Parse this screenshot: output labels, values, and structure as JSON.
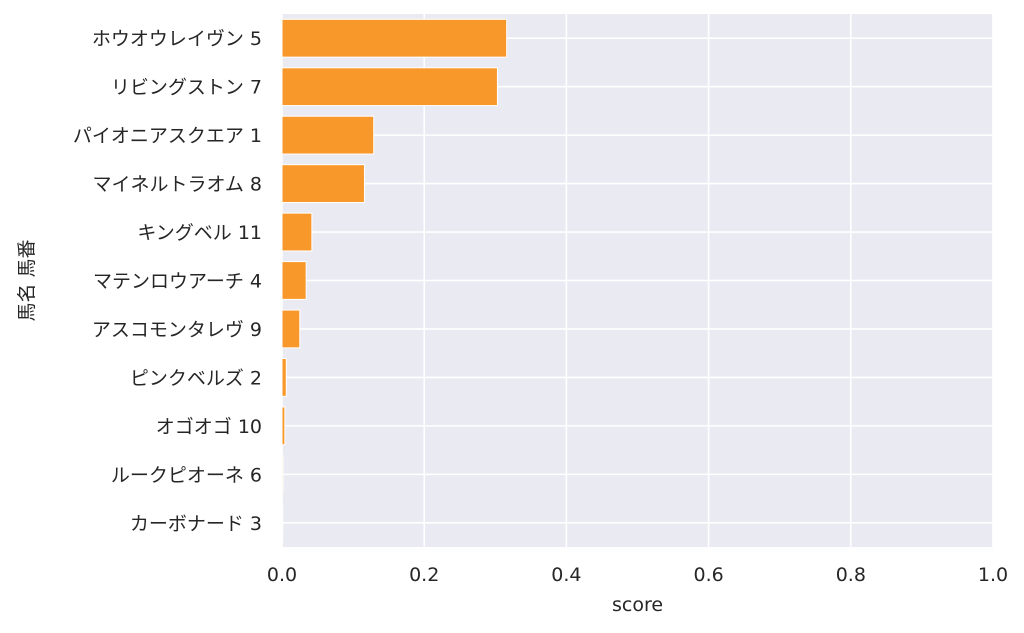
{
  "chart_data": {
    "type": "bar",
    "orientation": "horizontal",
    "categories": [
      "ホウオウレイヴン 5",
      "リビングストン 7",
      "パイオニアスクエア 1",
      "マイネルトラオム 8",
      "キングベル 11",
      "マテンロウアーチ 4",
      "アスコモンタレヴ 9",
      "ピンクベルズ 2",
      "オゴオゴ 10",
      "ルークピオーネ 6",
      "カーボナード 3"
    ],
    "values": [
      0.316,
      0.303,
      0.129,
      0.116,
      0.042,
      0.034,
      0.025,
      0.006,
      0.004,
      0.0015,
      0.001
    ],
    "xlabel": "score",
    "ylabel": "馬名 馬番",
    "xlim": [
      0,
      1
    ],
    "xticks": [
      "0.0",
      "0.2",
      "0.4",
      "0.6",
      "0.8",
      "1.0"
    ],
    "xtick_values": [
      0,
      0.2,
      0.4,
      0.6,
      0.8,
      1.0
    ],
    "grid": true,
    "colors": {
      "bar": "#f8982b",
      "plot_background": "#eaeaf2",
      "grid": "#ffffff",
      "text": "#262626"
    }
  }
}
